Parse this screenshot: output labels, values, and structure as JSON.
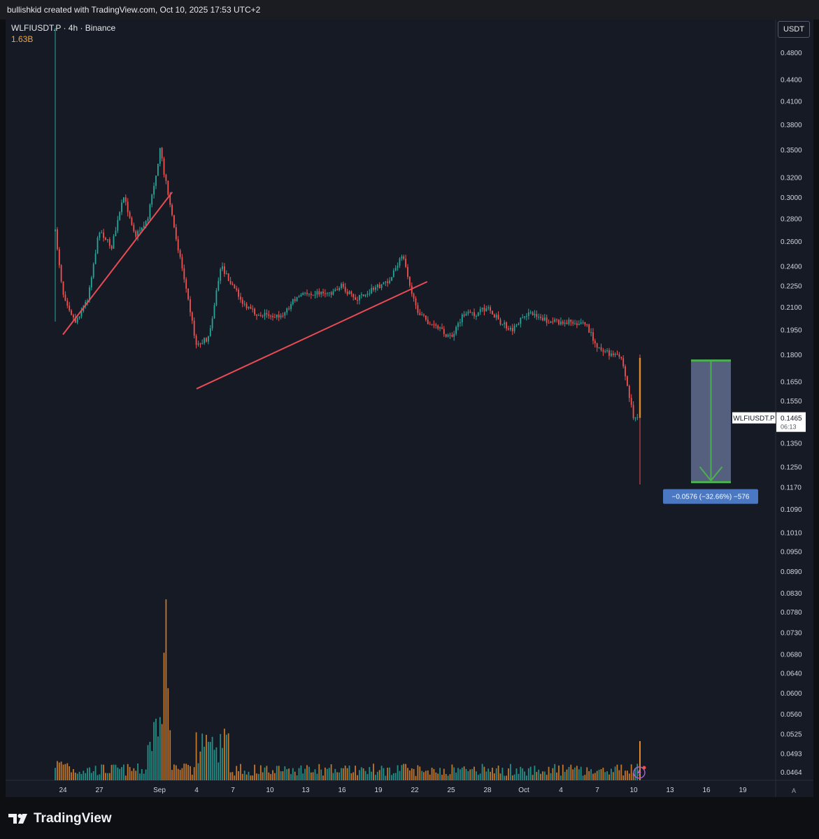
{
  "header": {
    "attribution": "bullishkid created with TradingView.com, Oct 10, 2025 17:53 UTC+2"
  },
  "legend": {
    "symbol": "WLFIUSDT.P · 4h · Binance",
    "volume": "1.63B"
  },
  "currency_button": "USDT",
  "brand": "TradingView",
  "scale_mode": "A",
  "colors": {
    "up": "#26a69a",
    "down": "#ef5350",
    "trendline": "#e84b54",
    "measure": "#4caf50",
    "volume_orange": "#e08a2b"
  },
  "chart_data": {
    "type": "candlestick",
    "symbol": "WLFIUSDT.P",
    "interval": "4h",
    "exchange": "Binance",
    "y_scale": "log",
    "y_ticks": [
      "0.4800",
      "0.4400",
      "0.4100",
      "0.3800",
      "0.3500",
      "0.3200",
      "0.3000",
      "0.2800",
      "0.2600",
      "0.2400",
      "0.2250",
      "0.2100",
      "0.1950",
      "0.1800",
      "0.1650",
      "0.1550",
      "0.1350",
      "0.1250",
      "0.1170",
      "0.1090",
      "0.1010",
      "0.0950",
      "0.0890",
      "0.0830",
      "0.0780",
      "0.0730",
      "0.0680",
      "0.0640",
      "0.0600",
      "0.0560",
      "0.0525",
      "0.0493",
      "0.0464"
    ],
    "x_ticks": [
      "24",
      "27",
      "Sep",
      "4",
      "7",
      "10",
      "13",
      "16",
      "19",
      "22",
      "25",
      "28",
      "Oct",
      "4",
      "7",
      "10",
      "13",
      "16",
      "19"
    ],
    "price_path": [
      {
        "date": "2025-08-23",
        "price": 0.3
      },
      {
        "date": "2025-08-24",
        "price": 0.22
      },
      {
        "date": "2025-08-25",
        "price": 0.2
      },
      {
        "date": "2025-08-26",
        "price": 0.215
      },
      {
        "date": "2025-08-27",
        "price": 0.27
      },
      {
        "date": "2025-08-28",
        "price": 0.255
      },
      {
        "date": "2025-08-29",
        "price": 0.3
      },
      {
        "date": "2025-08-30",
        "price": 0.265
      },
      {
        "date": "2025-08-31",
        "price": 0.28
      },
      {
        "date": "2025-09-01",
        "price": 0.35
      },
      {
        "date": "2025-09-02",
        "price": 0.28
      },
      {
        "date": "2025-09-03",
        "price": 0.23
      },
      {
        "date": "2025-09-04",
        "price": 0.185
      },
      {
        "date": "2025-09-05",
        "price": 0.19
      },
      {
        "date": "2025-09-06",
        "price": 0.24
      },
      {
        "date": "2025-09-07",
        "price": 0.225
      },
      {
        "date": "2025-09-08",
        "price": 0.21
      },
      {
        "date": "2025-09-09",
        "price": 0.205
      },
      {
        "date": "2025-09-10",
        "price": 0.205
      },
      {
        "date": "2025-09-11",
        "price": 0.203
      },
      {
        "date": "2025-09-12",
        "price": 0.215
      },
      {
        "date": "2025-09-13",
        "price": 0.22
      },
      {
        "date": "2025-09-14",
        "price": 0.22
      },
      {
        "date": "2025-09-15",
        "price": 0.22
      },
      {
        "date": "2025-09-16",
        "price": 0.225
      },
      {
        "date": "2025-09-17",
        "price": 0.215
      },
      {
        "date": "2025-09-18",
        "price": 0.22
      },
      {
        "date": "2025-09-19",
        "price": 0.225
      },
      {
        "date": "2025-09-20",
        "price": 0.23
      },
      {
        "date": "2025-09-21",
        "price": 0.25
      },
      {
        "date": "2025-09-22",
        "price": 0.21
      },
      {
        "date": "2025-09-23",
        "price": 0.2
      },
      {
        "date": "2025-09-24",
        "price": 0.195
      },
      {
        "date": "2025-09-25",
        "price": 0.19
      },
      {
        "date": "2025-09-26",
        "price": 0.205
      },
      {
        "date": "2025-09-27",
        "price": 0.205
      },
      {
        "date": "2025-09-28",
        "price": 0.21
      },
      {
        "date": "2025-09-29",
        "price": 0.2
      },
      {
        "date": "2025-09-30",
        "price": 0.195
      },
      {
        "date": "2025-10-01",
        "price": 0.205
      },
      {
        "date": "2025-10-02",
        "price": 0.205
      },
      {
        "date": "2025-10-03",
        "price": 0.2
      },
      {
        "date": "2025-10-04",
        "price": 0.2
      },
      {
        "date": "2025-10-05",
        "price": 0.2
      },
      {
        "date": "2025-10-06",
        "price": 0.199
      },
      {
        "date": "2025-10-07",
        "price": 0.185
      },
      {
        "date": "2025-10-08",
        "price": 0.18
      },
      {
        "date": "2025-10-09",
        "price": 0.178
      },
      {
        "date": "2025-10-10",
        "price": 0.1465
      }
    ],
    "last_bar": {
      "open": 0.178,
      "high": 0.18,
      "low": 0.118,
      "close": 0.1465
    },
    "trendlines": [
      {
        "from": {
          "date": "2025-08-24",
          "price": 0.192
        },
        "to": {
          "date": "2025-09-02",
          "price": 0.305
        }
      },
      {
        "from": {
          "date": "2025-09-04",
          "price": 0.161
        },
        "to": {
          "date": "2025-09-23",
          "price": 0.228
        }
      }
    ],
    "measure": {
      "from_price": 0.1765,
      "to_price": 0.1189,
      "label": "−0.0576 (−32.66%) −576"
    },
    "last_price_label": {
      "symbol": "WLFIUSDT.P",
      "price": "0.1465",
      "countdown": "06:13"
    },
    "volume": {
      "peak_date": "2025-09-01"
    }
  }
}
